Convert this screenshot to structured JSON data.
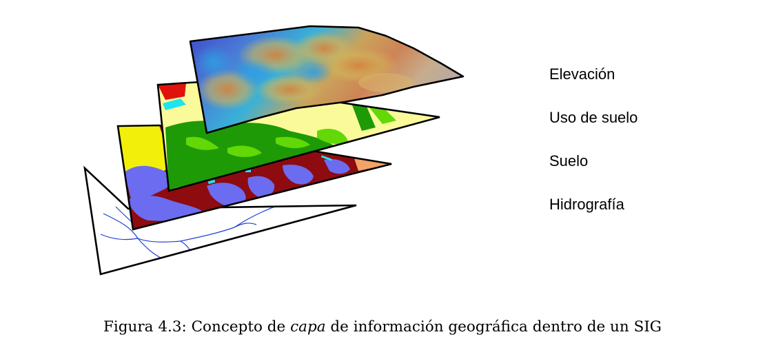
{
  "layers": [
    {
      "id": "elevacion",
      "label": "Elevación"
    },
    {
      "id": "uso-suelo",
      "label": "Uso de suelo"
    },
    {
      "id": "suelo",
      "label": "Suelo"
    },
    {
      "id": "hidrografia",
      "label": "Hidrografía"
    }
  ],
  "caption": {
    "prefix": "Figura 4.3: Concepto de ",
    "emphasis": "capa",
    "suffix": " de información geográfica dentro de un SIG"
  },
  "colors": {
    "hidrografia_bg": "#ffffff",
    "river": "#1f3fd8",
    "soil_dark_red": "#8e0b10",
    "soil_blue": "#6b6cf0",
    "soil_yellow": "#f2f00a",
    "landuse_green": "#1e9a06",
    "landuse_light_green": "#62d806",
    "landuse_pale_yellow": "#fbfa9a",
    "landuse_red": "#e0120c",
    "landuse_cyan": "#1ee4ef",
    "elev_low": "#3d48c8",
    "elev_mid": "#38b1d8",
    "elev_high": "#ce8455",
    "outline": "#000000"
  }
}
